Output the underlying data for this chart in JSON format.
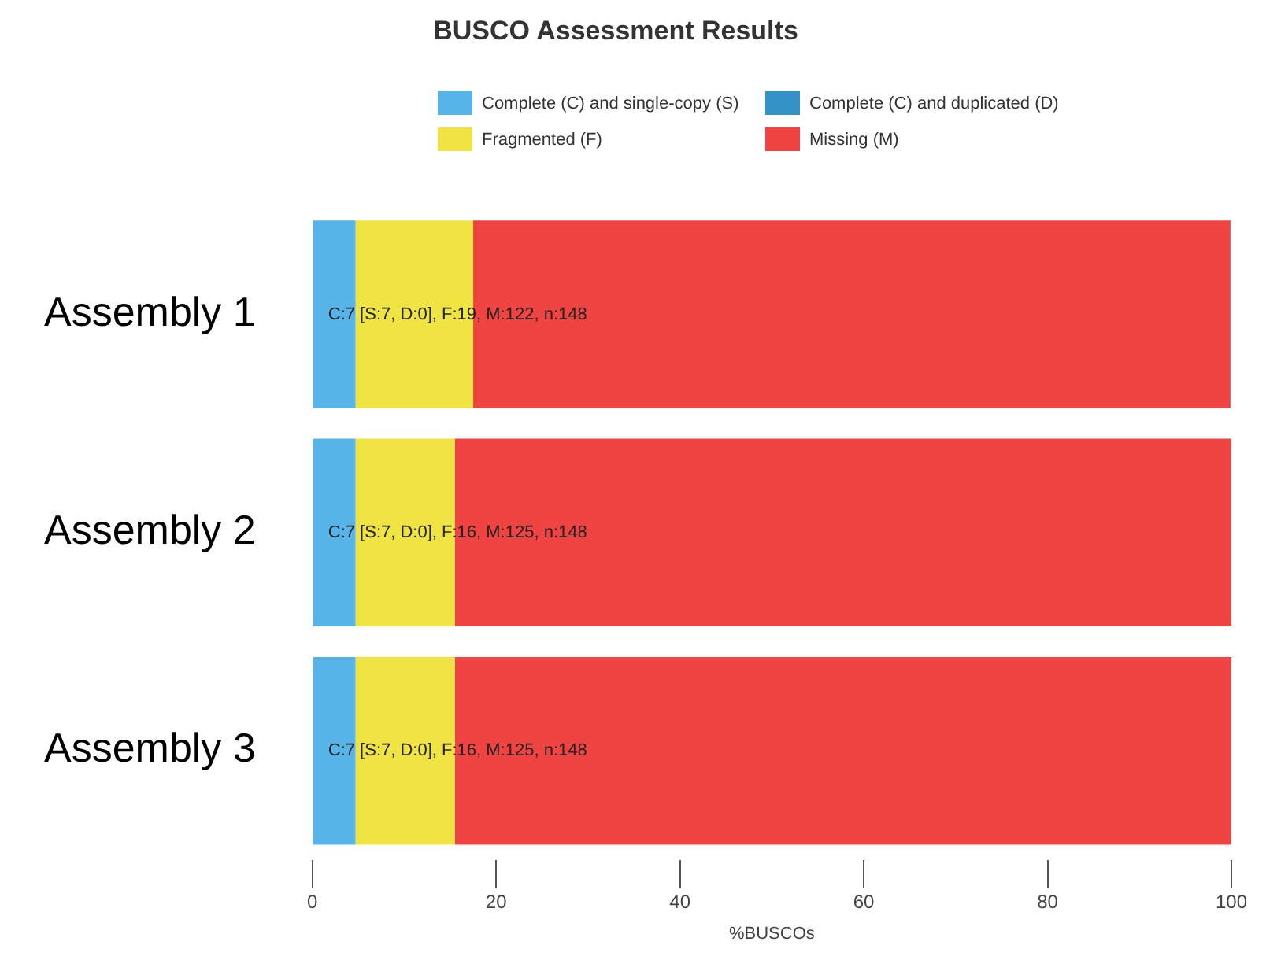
{
  "chart_data": {
    "type": "bar",
    "orientation": "horizontal",
    "stacked": true,
    "title": "BUSCO Assessment Results",
    "xlabel": "%BUSCOs",
    "categories": [
      "Assembly 1",
      "Assembly 2",
      "Assembly 3"
    ],
    "series": [
      {
        "name": "Complete (C) and single-copy (S)",
        "color": "#56b4e9",
        "values": [
          4.7,
          4.7,
          4.7
        ]
      },
      {
        "name": "Complete (C) and duplicated (D)",
        "color": "#3492c7",
        "values": [
          0,
          0,
          0
        ]
      },
      {
        "name": "Fragmented (F)",
        "color": "#f0e442",
        "values": [
          12.8,
          10.8,
          10.8
        ]
      },
      {
        "name": "Missing (M)",
        "color": "#f04442",
        "values": [
          82.4,
          84.5,
          84.5
        ]
      }
    ],
    "xlim": [
      0,
      100
    ],
    "xticks": [
      0,
      20,
      40,
      60,
      80,
      100
    ],
    "grid": false,
    "legend": "top",
    "annotations": [
      "C:7 [S:7, D:0], F:19, M:122, n:148",
      "C:7 [S:7, D:0], F:16, M:125, n:148",
      "C:7 [S:7, D:0], F:16, M:125, n:148"
    ]
  }
}
